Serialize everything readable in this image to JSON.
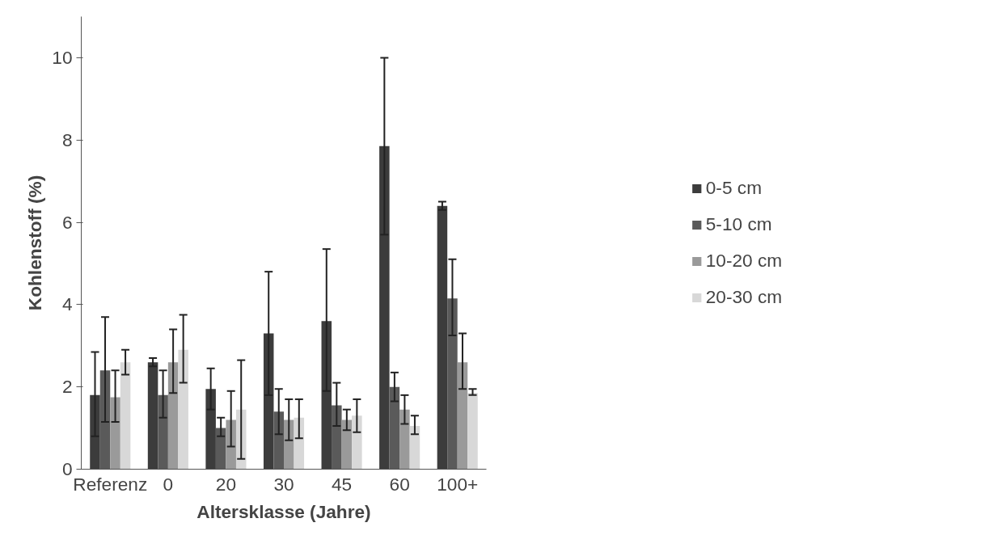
{
  "chart_data": {
    "type": "bar",
    "xlabel": "Altersklasse (Jahre)",
    "ylabel": "Kohlenstoff (%)",
    "categories": [
      "Referenz",
      "0",
      "20",
      "30",
      "45",
      "60",
      "100+"
    ],
    "series": [
      {
        "name": "0-5 cm",
        "color": "#3c3c3c",
        "values": [
          1.8,
          2.6,
          1.95,
          3.3,
          3.6,
          7.85,
          6.4
        ],
        "errors": [
          [
            0.8,
            2.85
          ],
          [
            2.5,
            2.7
          ],
          [
            1.45,
            2.45
          ],
          [
            1.8,
            4.8
          ],
          [
            1.9,
            5.35
          ],
          [
            5.7,
            10.0
          ],
          [
            6.3,
            6.5
          ]
        ]
      },
      {
        "name": "5-10 cm",
        "color": "#5a5a5a",
        "values": [
          2.4,
          1.8,
          1.0,
          1.4,
          1.55,
          2.0,
          4.15
        ],
        "errors": [
          [
            1.15,
            3.7
          ],
          [
            1.25,
            2.4
          ],
          [
            0.8,
            1.25
          ],
          [
            0.85,
            1.95
          ],
          [
            1.05,
            2.1
          ],
          [
            1.65,
            2.35
          ],
          [
            3.25,
            5.1
          ]
        ]
      },
      {
        "name": "10-20 cm",
        "color": "#9a9a9a",
        "values": [
          1.75,
          2.6,
          1.2,
          1.2,
          1.2,
          1.45,
          2.6
        ],
        "errors": [
          [
            1.15,
            2.4
          ],
          [
            1.85,
            3.4
          ],
          [
            0.55,
            1.9
          ],
          [
            0.7,
            1.7
          ],
          [
            0.95,
            1.45
          ],
          [
            1.1,
            1.8
          ],
          [
            1.95,
            3.3
          ]
        ]
      },
      {
        "name": "20-30 cm",
        "color": "#d8d8d8",
        "values": [
          2.6,
          2.9,
          1.45,
          1.25,
          1.3,
          1.05,
          1.85
        ],
        "errors": [
          [
            2.3,
            2.9
          ],
          [
            2.1,
            3.75
          ],
          [
            0.25,
            2.65
          ],
          [
            0.75,
            1.7
          ],
          [
            0.9,
            1.7
          ],
          [
            0.85,
            1.3
          ],
          [
            1.8,
            1.95
          ]
        ]
      }
    ],
    "ylim": [
      0,
      11
    ],
    "yticks": [
      0,
      2,
      4,
      6,
      8,
      10
    ],
    "grid": false,
    "legend": "right"
  }
}
